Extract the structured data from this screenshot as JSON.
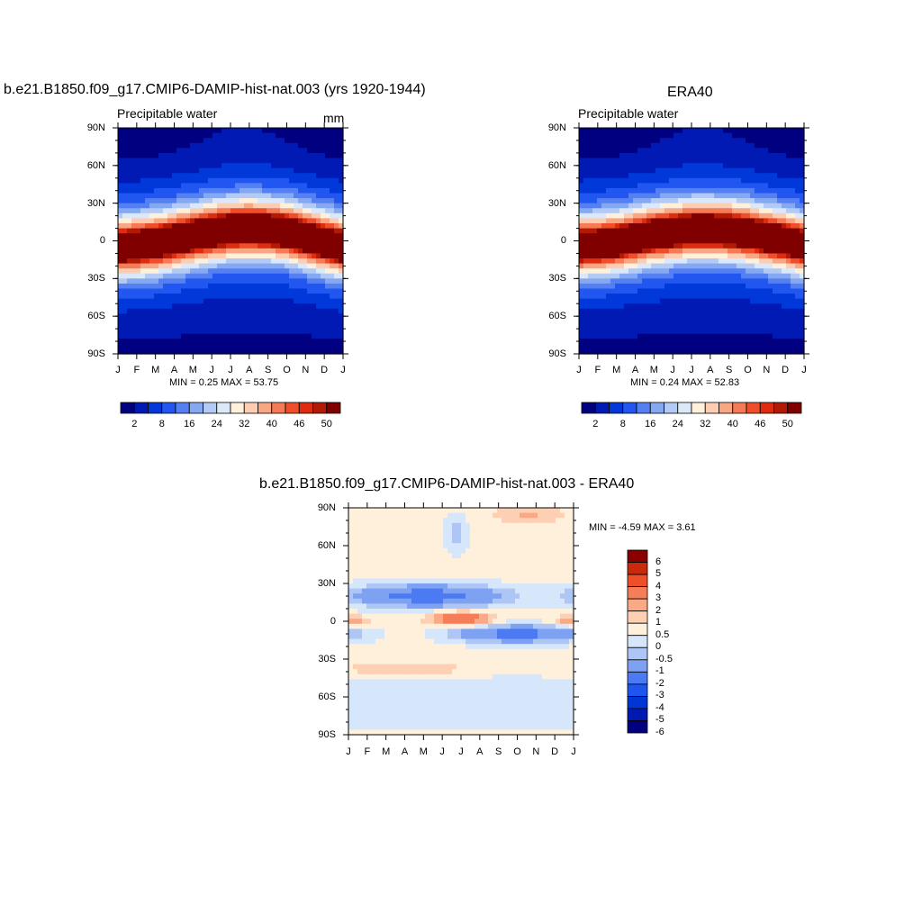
{
  "palette_abs": [
    "#000080",
    "#001ab3",
    "#0038d9",
    "#2157f0",
    "#5580f2",
    "#85a8f2",
    "#b3caf5",
    "#dbe8fa",
    "#fff0dc",
    "#fccdb2",
    "#f8a784",
    "#f57a55",
    "#ee4f2a",
    "#dd2c10",
    "#b31a06",
    "#800000"
  ],
  "palette_diff": [
    "#000080",
    "#0019b0",
    "#0036d6",
    "#1f55ef",
    "#4c7af2",
    "#7ea1f2",
    "#adc6f6",
    "#d6e6fb",
    "#fff0dc",
    "#fdd0b4",
    "#f9a985",
    "#f57d58",
    "#ee4f2a",
    "#c92a0c",
    "#8a0000"
  ],
  "panels": [
    {
      "title": "b.e21.B1850.f09_g17.CMIP6-DAMIP-hist-nat.003 (yrs 1920-1944)",
      "subtitle": "Precipitable water",
      "units": "mm",
      "stats": "MIN =   0.25 MAX =  53.75"
    },
    {
      "title": "ERA40",
      "subtitle": "Precipitable water",
      "units": "",
      "stats": "MIN =   0.24 MAX =  52.83"
    },
    {
      "title": "b.e21.B1850.f09_g17.CMIP6-DAMIP-hist-nat.003 - ERA40",
      "subtitle": "",
      "units": "",
      "stats": "MIN =  -4.59 MAX =   3.61"
    }
  ],
  "axes": {
    "y_ticks": [
      "90N",
      "60N",
      "30N",
      "0",
      "30S",
      "60S",
      "90S"
    ],
    "x_ticks": [
      "J",
      "F",
      "M",
      "A",
      "M",
      "J",
      "J",
      "A",
      "S",
      "O",
      "N",
      "D",
      "J"
    ]
  },
  "colorbar_abs_labels": [
    "2",
    "8",
    "16",
    "24",
    "32",
    "40",
    "46",
    "50"
  ],
  "colorbar_diff_labels": [
    "6",
    "5",
    "4",
    "3",
    "2",
    "1",
    "0.5",
    "0",
    "-0.5",
    "-1",
    "-2",
    "-3",
    "-4",
    "-5",
    "-6"
  ],
  "chart_data": [
    {
      "type": "heatmap",
      "title": "b.e21.B1850.f09_g17.CMIP6-DAMIP-hist-nat.003 (yrs 1920-1944)",
      "subtitle": "Precipitable water",
      "units": "mm",
      "x": [
        "J",
        "F",
        "M",
        "A",
        "M",
        "J",
        "J",
        "A",
        "S",
        "O",
        "N",
        "D",
        "J"
      ],
      "y": [
        "90S",
        "60S",
        "30S",
        "0",
        "30N",
        "60N",
        "90N"
      ],
      "levels": [
        2,
        5,
        8,
        12,
        16,
        20,
        24,
        28,
        32,
        36,
        40,
        43,
        46,
        48,
        50
      ],
      "min": 0.25,
      "max": 53.75,
      "model": {
        "peak": 53.75,
        "itcz_lat": [
          -5,
          -4,
          -2,
          1,
          4,
          7,
          9,
          10,
          9,
          7,
          3,
          -1,
          -5
        ],
        "width": 22
      }
    },
    {
      "type": "heatmap",
      "title": "ERA40",
      "subtitle": "Precipitable water",
      "x": [
        "J",
        "F",
        "M",
        "A",
        "M",
        "J",
        "J",
        "A",
        "S",
        "O",
        "N",
        "D",
        "J"
      ],
      "y": [
        "90S",
        "60S",
        "30S",
        "0",
        "30N",
        "60N",
        "90N"
      ],
      "levels": [
        2,
        5,
        8,
        12,
        16,
        20,
        24,
        28,
        32,
        36,
        40,
        43,
        46,
        48,
        50
      ],
      "min": 0.24,
      "max": 52.83,
      "model": {
        "peak": 52.83,
        "itcz_lat": [
          -4,
          -3,
          -1,
          2,
          5,
          7,
          9,
          9,
          8,
          6,
          3,
          0,
          -4
        ],
        "width": 22
      }
    },
    {
      "type": "heatmap",
      "title": "b.e21.B1850.f09_g17.CMIP6-DAMIP-hist-nat.003 - ERA40",
      "x": [
        "J",
        "F",
        "M",
        "A",
        "M",
        "J",
        "J",
        "A",
        "S",
        "O",
        "N",
        "D",
        "J"
      ],
      "y": [
        "90S",
        "60S",
        "30S",
        "0",
        "30N",
        "60N",
        "90N"
      ],
      "levels": [
        -6,
        -5,
        -4,
        -3,
        -2,
        -1,
        -0.5,
        0,
        0.5,
        1,
        2,
        3,
        4,
        5,
        6
      ],
      "min": -4.59,
      "max": 3.61
    }
  ]
}
